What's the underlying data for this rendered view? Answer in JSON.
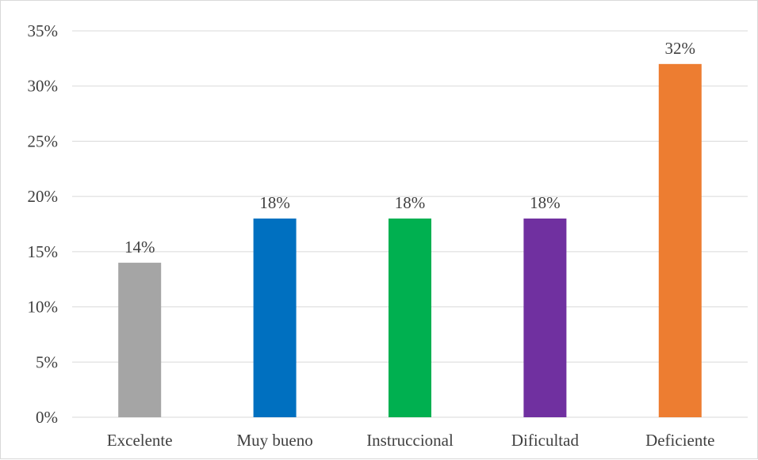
{
  "chart_data": {
    "type": "bar",
    "title": "",
    "xlabel": "",
    "ylabel": "",
    "categories": [
      "Excelente",
      "Muy bueno",
      "Instruccional",
      "Dificultad",
      "Deficiente"
    ],
    "values": [
      14,
      18,
      18,
      18,
      32
    ],
    "data_labels": [
      "14%",
      "18%",
      "18%",
      "18%",
      "32%"
    ],
    "colors": [
      "#a5a5a5",
      "#0070c0",
      "#00b050",
      "#7030a0",
      "#ed7d31"
    ],
    "ylim": [
      0,
      35
    ],
    "yticks": [
      0,
      5,
      10,
      15,
      20,
      25,
      30,
      35
    ],
    "ytick_labels": [
      "0%",
      "5%",
      "10%",
      "15%",
      "20%",
      "25%",
      "30%",
      "35%"
    ],
    "grid": true,
    "legend": "none"
  }
}
